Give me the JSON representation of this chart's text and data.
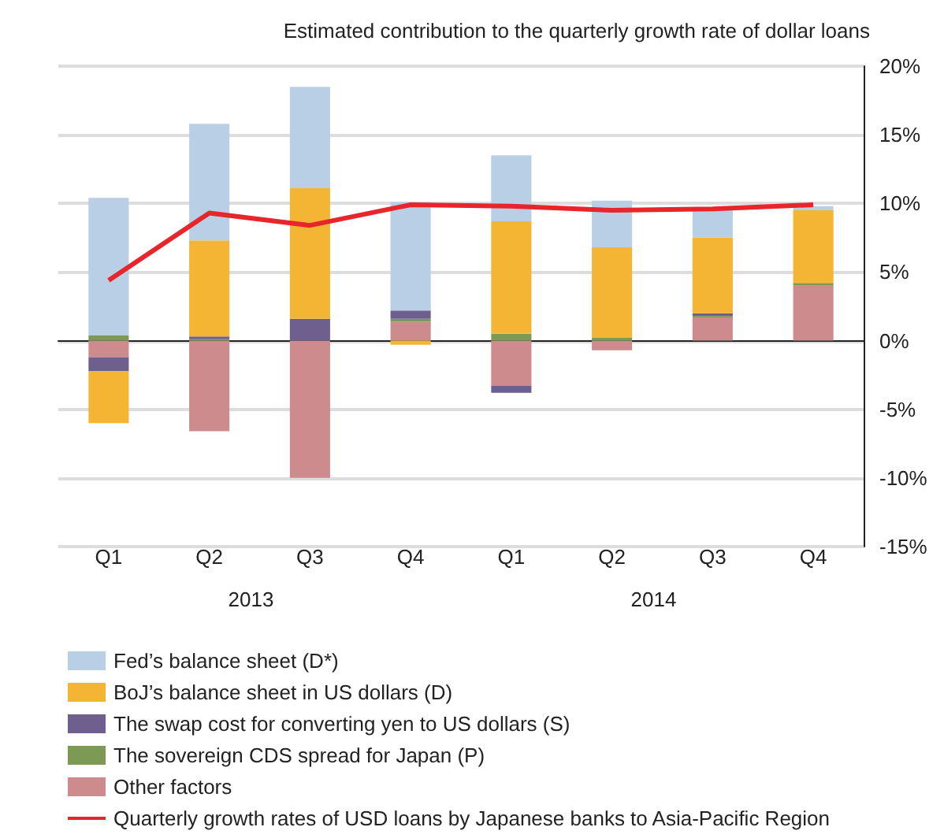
{
  "chart_data": {
    "type": "bar",
    "stacked": true,
    "ylabel": "Estimated contribution to the quarterly growth rate of dollar loans",
    "categories": [
      "Q1",
      "Q2",
      "Q3",
      "Q4",
      "Q1",
      "Q2",
      "Q3",
      "Q4"
    ],
    "annotations": [
      "2013",
      "2014"
    ],
    "series": [
      {
        "name": "Other factors",
        "color": "#cd8b8e",
        "values": [
          -1.2,
          -6.6,
          -10.0,
          1.4,
          -3.3,
          -0.7,
          1.7,
          4.0
        ]
      },
      {
        "name": "The sovereign CDS spread for Japan (P)",
        "color": "#7d9a55",
        "values": [
          0.4,
          0.1,
          null,
          0.2,
          0.5,
          0.2,
          0.1,
          0.2
        ]
      },
      {
        "name": "The swap cost for converting yen to US dollars (S)",
        "color": "#6f5f8e",
        "values": [
          -1.0,
          0.2,
          1.6,
          0.6,
          -0.5,
          null,
          0.2,
          null
        ]
      },
      {
        "name": "BoJ’s balance sheet in US dollars (D)",
        "color": "#f4b434",
        "values": [
          -3.8,
          7.0,
          9.5,
          -0.3,
          8.2,
          6.6,
          5.5,
          5.3
        ]
      },
      {
        "name": "Fed’s balance sheet (D*)",
        "color": "#b8cfe6",
        "values": [
          10.0,
          8.5,
          7.4,
          7.9,
          4.8,
          3.4,
          2.1,
          0.3
        ]
      },
      {
        "name": "Quarterly growth rates of USD loans by Japanese banks to Asia-Pacific Region",
        "type": "line",
        "color": "#e8252a",
        "values": [
          4.4,
          9.3,
          8.4,
          9.9,
          9.8,
          9.5,
          9.6,
          9.9
        ]
      }
    ],
    "ylim": [
      -15,
      20
    ],
    "yticks": [
      {
        "value": -15,
        "label": "-15%"
      },
      {
        "value": -10,
        "label": "-10%"
      },
      {
        "value": -5,
        "label": "-5%"
      },
      {
        "value": 0,
        "label": "0%"
      },
      {
        "value": 5,
        "label": "5%"
      },
      {
        "value": 10,
        "label": "10%"
      },
      {
        "value": 15,
        "label": "15%"
      },
      {
        "value": 20,
        "label": "20%"
      }
    ],
    "grid": "y",
    "legend": "bottom",
    "marker": "none"
  }
}
